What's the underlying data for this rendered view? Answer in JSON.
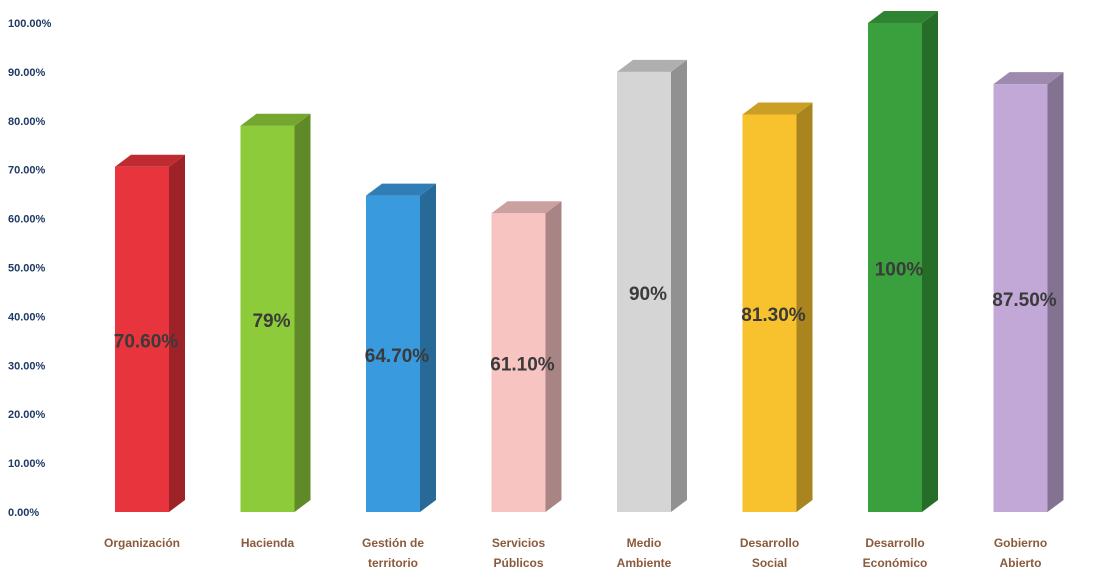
{
  "chart_data": {
    "type": "bar",
    "title": "",
    "xlabel": "",
    "ylabel": "",
    "ylim": [
      0,
      100
    ],
    "y_ticks": [
      "0.00%",
      "10.00%",
      "20.00%",
      "30.00%",
      "40.00%",
      "50.00%",
      "60.00%",
      "70.00%",
      "80.00%",
      "90.00%",
      "100.00%"
    ],
    "grid": false,
    "legend": "none",
    "categories": [
      [
        "Organización"
      ],
      [
        "Hacienda"
      ],
      [
        "Gestión de",
        "territorio"
      ],
      [
        "Servicios",
        "Públicos"
      ],
      [
        "Medio",
        "Ambiente"
      ],
      [
        "Desarrollo",
        "Social"
      ],
      [
        "Desarrollo",
        "Económico"
      ],
      [
        "Gobierno",
        "Abierto"
      ]
    ],
    "values": [
      70.6,
      79,
      64.7,
      61.1,
      90,
      81.3,
      100,
      87.5
    ],
    "data_labels": [
      "70.60%",
      "79%",
      "64.70%",
      "61.10%",
      "90%",
      "81.30%",
      "100%",
      "87.50%"
    ],
    "colors": [
      "#e8343c",
      "#8dcb3a",
      "#3a9ade",
      "#f7c4c2",
      "#d5d5d5",
      "#f8c22e",
      "#3aa03e",
      "#c2a8d6"
    ]
  }
}
